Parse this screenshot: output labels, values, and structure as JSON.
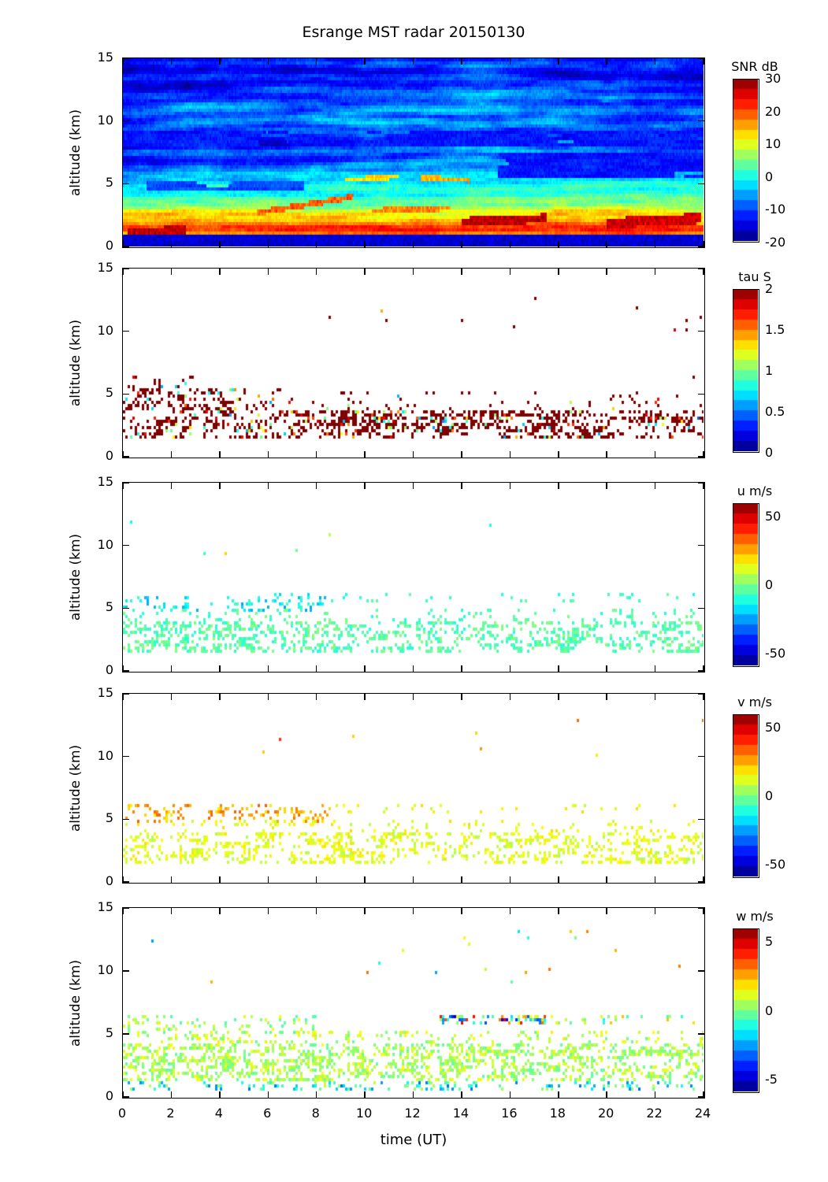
{
  "title": "Esrange MST radar 20150130",
  "xlabel": "time (UT)",
  "ylabel": "altitude (km)",
  "x_tick_values": [
    0,
    2,
    4,
    6,
    8,
    10,
    12,
    14,
    16,
    18,
    20,
    22,
    24
  ],
  "x_tick_labels": [
    "0",
    "2",
    "4",
    "6",
    "8",
    "10",
    "12",
    "14",
    "16",
    "18",
    "20",
    "22",
    "24"
  ],
  "y_tick_values": [
    0,
    5,
    10,
    15
  ],
  "y_tick_labels": [
    "0",
    "5",
    "10",
    "15"
  ],
  "axis": {
    "x_range": [
      0,
      24
    ],
    "y_range": [
      0,
      15
    ]
  },
  "chart_data": [
    {
      "type": "heatmap",
      "name": "SNR",
      "x_range": [
        0,
        24
      ],
      "y_range": [
        0,
        15
      ],
      "colorbar": {
        "label": "SNR dB",
        "range": [
          -20,
          30
        ],
        "ticks": [
          "30",
          "20",
          "10",
          "0",
          "-10",
          "-20"
        ],
        "tick_values": [
          30,
          20,
          10,
          0,
          -10,
          -20
        ]
      },
      "description": "Radar signal-to-noise ratio vs time and altitude. Strong echoes (orange/red, 15-30 dB) form a persistent layer near 1-3 km; moderate cyan/green layers 3-6 km with yellow laminae; weak blue background (-10 to -15 dB) above 6 km with cyan striations near 7, 9.5 and 11-12 km; dark navy strip below 1 km.",
      "profile": [
        [
          0,
          -16
        ],
        [
          0.85,
          -15
        ],
        [
          0.95,
          8
        ],
        [
          1.15,
          21
        ],
        [
          1.45,
          23
        ],
        [
          1.8,
          17
        ],
        [
          2.4,
          13
        ],
        [
          3.0,
          9
        ],
        [
          3.6,
          3
        ],
        [
          4.2,
          0
        ],
        [
          5.0,
          -2
        ],
        [
          5.6,
          -4
        ],
        [
          6.2,
          -8
        ],
        [
          7.0,
          -10
        ],
        [
          7.6,
          -8
        ],
        [
          8.2,
          -12
        ],
        [
          9.0,
          -12
        ],
        [
          9.8,
          -9
        ],
        [
          10.8,
          -8
        ],
        [
          11.6,
          -9
        ],
        [
          12.4,
          -11
        ],
        [
          13.2,
          -13
        ],
        [
          15,
          -13
        ]
      ],
      "blobs": [
        {
          "t": [
            15.5,
            24
          ],
          "a": [
            5.6,
            7.6
          ],
          "v": -13
        },
        {
          "t": [
            1,
            7.5
          ],
          "a": [
            4.5,
            5.3
          ],
          "v": -10
        },
        {
          "t": [
            0,
            24
          ],
          "a": [
            8.1,
            9.2
          ],
          "v": -13
        }
      ],
      "streaks": [
        {
          "t0": 5.5,
          "a0": 2.7,
          "t1": 9.5,
          "a1": 4.0,
          "v": 19,
          "w": 0.22
        },
        {
          "t0": 9.2,
          "a0": 5.35,
          "t1": 11.4,
          "a1": 5.6,
          "v": 13,
          "w": 0.18
        },
        {
          "t0": 12.3,
          "a0": 5.55,
          "t1": 14.3,
          "a1": 5.3,
          "v": 15,
          "w": 0.18
        },
        {
          "t0": 14.0,
          "a0": 2.0,
          "t1": 17.5,
          "a1": 2.3,
          "v": 27,
          "w": 0.35
        },
        {
          "t0": 20.0,
          "a0": 1.9,
          "t1": 23.9,
          "a1": 2.3,
          "v": 26,
          "w": 0.4
        },
        {
          "t0": 0.2,
          "a0": 1.2,
          "t1": 2.6,
          "a1": 1.4,
          "v": 27,
          "w": 0.3
        },
        {
          "t0": 10.3,
          "a0": 2.9,
          "t1": 13.5,
          "a1": 3.1,
          "v": 17,
          "w": 0.2
        }
      ]
    },
    {
      "type": "heatmap",
      "name": "tau",
      "x_range": [
        0,
        24
      ],
      "y_range": [
        0,
        15
      ],
      "colorbar": {
        "label": "tau S",
        "range": [
          0,
          2
        ],
        "ticks": [
          "2",
          "1.5",
          "1",
          "0.5",
          "0"
        ],
        "tick_values": [
          2,
          1.5,
          1,
          0.5,
          0
        ]
      },
      "background": "white",
      "description": "Echo persistence time; sparse speckle on white background, mostly saturated dark red (>=2 s) between 1.5 and 6 km, denser before 06 UT, with occasional yellow/green/cyan cells near 3 km between 08-14 UT and after 21 UT; isolated dots 9-13 km.",
      "bands": [
        {
          "a": [
            1.6,
            3.7
          ],
          "t": [
            0,
            24
          ],
          "d": 0.55,
          "mode": "tau"
        },
        {
          "a": [
            3.7,
            5.6
          ],
          "t": [
            0,
            6.5
          ],
          "d": 0.4,
          "mode": "tau"
        },
        {
          "a": [
            3.7,
            5.2
          ],
          "t": [
            6.5,
            24
          ],
          "d": 0.1,
          "mode": "tau"
        },
        {
          "a": [
            5.6,
            6.4
          ],
          "t": [
            0,
            3
          ],
          "d": 0.18,
          "mode": "tau"
        },
        {
          "a": [
            2.8,
            3.3
          ],
          "t": [
            7.5,
            14.5
          ],
          "d": 0.5,
          "mode": "mixed"
        },
        {
          "a": [
            2.5,
            3.2
          ],
          "t": [
            21,
            24
          ],
          "d": 0.35,
          "mode": "mixed"
        },
        {
          "a": [
            6.1,
            6.5
          ],
          "t": [
            23,
            24
          ],
          "d": 0.2,
          "mode": "tau"
        },
        {
          "a": [
            9,
            13
          ],
          "t": [
            0,
            24
          ],
          "d": 0.004,
          "mode": "tau"
        }
      ]
    },
    {
      "type": "heatmap",
      "name": "u",
      "x_range": [
        0,
        24
      ],
      "y_range": [
        0,
        15
      ],
      "colorbar": {
        "label": "u m/s",
        "range": [
          -60,
          60
        ],
        "ticks": [
          "50",
          "0",
          "-50"
        ],
        "tick_values": [
          50,
          0,
          -50
        ]
      },
      "background": "white",
      "description": "Zonal wind; light-green speckle near -5 m/s below 4 km at all times, cyan patches near -20 m/s at 5-6 km before 08 UT, rare dots 9-13 km.",
      "bands": [
        {
          "a": [
            1.6,
            4.0
          ],
          "t": [
            0,
            24
          ],
          "d": 0.5,
          "mean": -5,
          "std": 5
        },
        {
          "a": [
            4.0,
            5.0
          ],
          "t": [
            0,
            24
          ],
          "d": 0.15,
          "mean": -6,
          "std": 5
        },
        {
          "a": [
            4.8,
            6.3
          ],
          "t": [
            0,
            8.5
          ],
          "d": 0.32,
          "mean": -16,
          "std": 8
        },
        {
          "a": [
            5.5,
            6.3
          ],
          "t": [
            8.5,
            24
          ],
          "d": 0.07,
          "mean": -8,
          "std": 5
        },
        {
          "a": [
            9,
            13
          ],
          "t": [
            0,
            24
          ],
          "d": 0.0035,
          "mean": 5,
          "std": 18
        }
      ]
    },
    {
      "type": "heatmap",
      "name": "v",
      "x_range": [
        0,
        24
      ],
      "y_range": [
        0,
        15
      ],
      "colorbar": {
        "label": "v m/s",
        "range": [
          -60,
          60
        ],
        "ticks": [
          "50",
          "0",
          "-50"
        ],
        "tick_values": [
          50,
          0,
          -50
        ]
      },
      "background": "white",
      "description": "Meridional wind; yellow-green speckle near +12 m/s below 4 km, yellow patches near +25 m/s at 5-6 km before 08 UT, rare dots 9-13 km.",
      "bands": [
        {
          "a": [
            1.6,
            4.0
          ],
          "t": [
            0,
            24
          ],
          "d": 0.5,
          "mean": 12,
          "std": 5
        },
        {
          "a": [
            4.0,
            5.0
          ],
          "t": [
            0,
            24
          ],
          "d": 0.15,
          "mean": 13,
          "std": 5
        },
        {
          "a": [
            4.8,
            6.3
          ],
          "t": [
            0,
            8.5
          ],
          "d": 0.32,
          "mean": 25,
          "std": 7
        },
        {
          "a": [
            5.5,
            6.3
          ],
          "t": [
            8.5,
            24
          ],
          "d": 0.07,
          "mean": 14,
          "std": 5
        },
        {
          "a": [
            9,
            13
          ],
          "t": [
            0,
            24
          ],
          "d": 0.0035,
          "mean": 20,
          "std": 15
        }
      ]
    },
    {
      "type": "heatmap",
      "name": "w",
      "x_range": [
        0,
        24
      ],
      "y_range": [
        0,
        15
      ],
      "colorbar": {
        "label": "w m/s",
        "range": [
          -6,
          6
        ],
        "ticks": [
          "5",
          "0",
          "-5"
        ],
        "tick_values": [
          5,
          0,
          -5
        ]
      },
      "background": "white",
      "description": "Vertical wind; dense green speckle near +0.5 m/s between 1 and 4 km, scattered cyan/blue cells near 1 km, a noisy multicoloured layer (about +/-5 m/s) near 6-6.5 km between 13 and 17.5 UT, rare dots aloft.",
      "bands": [
        {
          "a": [
            1.2,
            4.2
          ],
          "t": [
            0,
            24
          ],
          "d": 0.62,
          "mean": 0.5,
          "std": 0.7
        },
        {
          "a": [
            4.2,
            5.3
          ],
          "t": [
            0,
            24
          ],
          "d": 0.22,
          "mean": 0.7,
          "std": 0.8
        },
        {
          "a": [
            5.0,
            6.6
          ],
          "t": [
            0,
            8
          ],
          "d": 0.28,
          "mean": 0.4,
          "std": 0.9
        },
        {
          "a": [
            5.8,
            6.6
          ],
          "t": [
            13,
            17.5
          ],
          "d": 0.6,
          "mean": 0,
          "std": 4
        },
        {
          "a": [
            5.8,
            6.6
          ],
          "t": [
            17.5,
            24
          ],
          "d": 0.22,
          "mean": 0.5,
          "std": 1.5
        },
        {
          "a": [
            0.5,
            1.3
          ],
          "t": [
            0,
            24
          ],
          "d": 0.3,
          "mean": -1.2,
          "std": 1.6
        },
        {
          "a": [
            9,
            13.5
          ],
          "t": [
            0,
            24
          ],
          "d": 0.004,
          "mean": 0,
          "std": 2.5
        }
      ]
    }
  ]
}
